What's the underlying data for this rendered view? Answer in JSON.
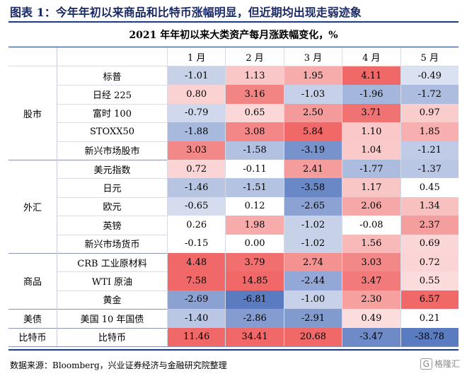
{
  "figure_title": "图表 1：今年年初以来商品和比特币涨幅明显，但近期均出现走弱迹象",
  "table": {
    "title": "2021 年年初以来大类资产每月涨跌幅变化，%",
    "months": [
      "1 月",
      "2 月",
      "3 月",
      "4 月",
      "5 月"
    ],
    "groups": [
      {
        "name": "股市",
        "rows": [
          {
            "item": "标普",
            "values": [
              "-1.01",
              "1.13",
              "1.95",
              "4.11",
              "-0.49"
            ]
          },
          {
            "item": "日经 225",
            "values": [
              "0.80",
              "3.16",
              "-1.03",
              "-1.96",
              "-1.72"
            ]
          },
          {
            "item": "富时 100",
            "values": [
              "-0.79",
              "0.65",
              "2.50",
              "3.71",
              "0.97"
            ]
          },
          {
            "item": "STOXX50",
            "values": [
              "-1.88",
              "3.08",
              "5.84",
              "1.10",
              "1.85"
            ]
          },
          {
            "item": "新兴市场股市",
            "values": [
              "3.03",
              "-1.58",
              "-3.19",
              "1.04",
              "-1.21"
            ]
          }
        ]
      },
      {
        "name": "外汇",
        "rows": [
          {
            "item": "美元指数",
            "values": [
              "0.72",
              "-0.11",
              "2.41",
              "-1.77",
              "-1.37"
            ]
          },
          {
            "item": "日元",
            "values": [
              "-1.46",
              "-1.51",
              "-3.58",
              "1.17",
              "0.45"
            ]
          },
          {
            "item": "欧元",
            "values": [
              "-0.65",
              "0.12",
              "-2.65",
              "2.06",
              "1.34"
            ]
          },
          {
            "item": "英镑",
            "values": [
              "0.26",
              "1.98",
              "-1.02",
              "-0.08",
              "2.37"
            ]
          },
          {
            "item": "新兴市场货币",
            "values": [
              "-0.15",
              "0.00",
              "-1.02",
              "1.56",
              "0.69"
            ]
          }
        ]
      },
      {
        "name": "商品",
        "rows": [
          {
            "item": "CRB 工业原材料",
            "values": [
              "4.48",
              "3.79",
              "2.74",
              "3.03",
              "0.72"
            ]
          },
          {
            "item": "WTI 原油",
            "values": [
              "7.58",
              "14.85",
              "-2.44",
              "3.47",
              "0.55"
            ]
          },
          {
            "item": "黄金",
            "values": [
              "-2.69",
              "-6.81",
              "-1.00",
              "2.30",
              "6.57"
            ]
          }
        ]
      },
      {
        "name": "美债",
        "rows": [
          {
            "item": "美国 10 年国债",
            "values": [
              "-1.40",
              "-2.86",
              "-2.91",
              "0.49",
              "0.21"
            ]
          }
        ]
      },
      {
        "name": "比特币",
        "rows": [
          {
            "item": "比特币",
            "values": [
              "11.46",
              "34.41",
              "20.68",
              "-3.47",
              "-38.78"
            ]
          }
        ]
      }
    ],
    "color_scale": {
      "negative": "#5b7bc0",
      "positive": "#f06868",
      "neutral": "#ffffff"
    }
  },
  "source": "数据来源：Bloomberg，兴业证券经济与金融研究院整理",
  "watermark": "格隆汇"
}
